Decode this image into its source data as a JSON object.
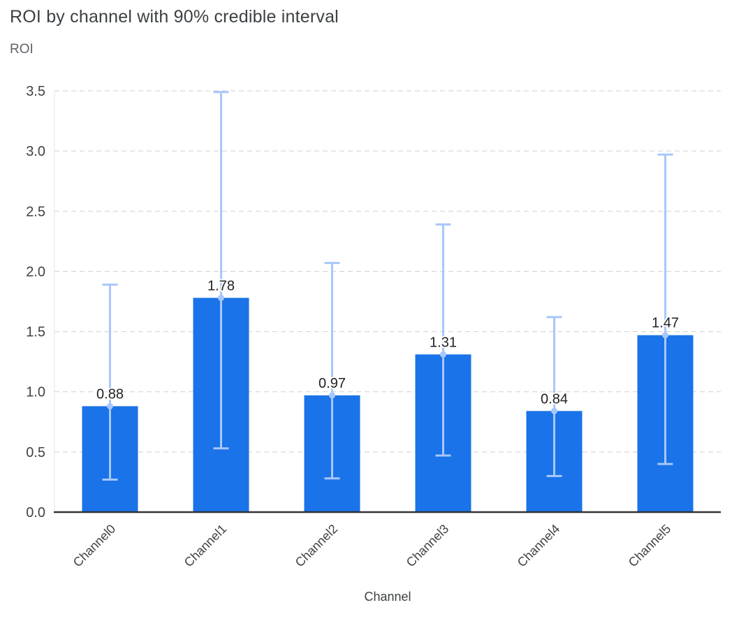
{
  "chart_data": {
    "type": "bar",
    "title": "ROI by channel with 90% credible interval",
    "xlabel": "Channel",
    "ylabel": "ROI",
    "categories": [
      "Channel0",
      "Channel1",
      "Channel2",
      "Channel3",
      "Channel4",
      "Channel5"
    ],
    "values": [
      0.88,
      1.78,
      0.97,
      1.31,
      0.84,
      1.47
    ],
    "value_labels": [
      "0.88",
      "1.78",
      "0.97",
      "1.31",
      "0.84",
      "1.47"
    ],
    "ci_lower": [
      0.27,
      0.53,
      0.28,
      0.47,
      0.3,
      0.4
    ],
    "ci_upper": [
      1.89,
      3.49,
      2.07,
      2.39,
      1.62,
      2.97
    ],
    "ylim": [
      0,
      3.5
    ],
    "ytick_step": 0.5,
    "ytick_labels": [
      "0.0",
      "0.5",
      "1.0",
      "1.5",
      "2.0",
      "2.5",
      "3.0",
      "3.5"
    ],
    "grid": true,
    "legend": "none",
    "colors": {
      "bar": "#1A73E8",
      "error": "#A8C7FA",
      "grid": "#cfcfcf",
      "axis": "#333333",
      "title": "#3c4043",
      "tick": "#424242",
      "value_label": "#202124"
    }
  }
}
